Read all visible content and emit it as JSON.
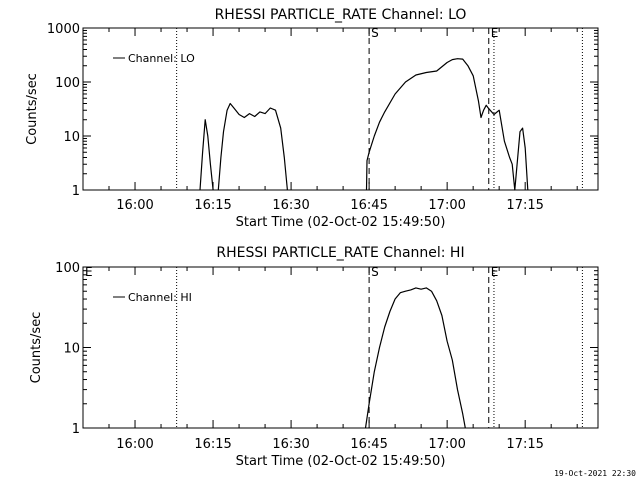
{
  "footer": {
    "timestamp": "19-Oct-2021 22:30"
  },
  "chart_data": [
    {
      "type": "line",
      "title": "RHESSI PARTICLE_RATE Channel: LO",
      "xlabel": "Start Time (02-Oct-02 15:49:50)",
      "ylabel": "Counts/sec",
      "y_scale": "log",
      "ylim": [
        1,
        1000
      ],
      "yticks": [
        1,
        10,
        100,
        1000
      ],
      "ytick_labels": [
        "1",
        "10",
        "100",
        "1000"
      ],
      "xlim": [
        "15:50",
        "17:29"
      ],
      "xticks": [
        "16:00",
        "16:15",
        "16:30",
        "16:45",
        "17:00",
        "17:15"
      ],
      "legend": {
        "label": "Channel: LO",
        "position": "top-left"
      },
      "markers": [
        {
          "time": "16:08",
          "style": "dotted",
          "label": ""
        },
        {
          "time": "16:45",
          "style": "dashed",
          "label": "S"
        },
        {
          "time": "17:08",
          "style": "dashed",
          "label": "E"
        },
        {
          "time": "17:09",
          "style": "dotted",
          "label": ""
        },
        {
          "time": "17:26",
          "style": "dotted",
          "label": ""
        }
      ],
      "series": [
        {
          "segments": [
            [
              [
                "16:12.5",
                1
              ],
              [
                "16:13",
                5
              ],
              [
                "16:13.5",
                20
              ],
              [
                "16:14",
                10
              ],
              [
                "16:14.5",
                3
              ],
              [
                "16:15",
                1
              ]
            ],
            [
              [
                "16:16",
                1
              ],
              [
                "16:16.5",
                4
              ],
              [
                "16:17",
                12
              ],
              [
                "16:17.7",
                30
              ],
              [
                "16:18.3",
                40
              ],
              [
                "16:19",
                33
              ],
              [
                "16:20",
                25
              ],
              [
                "16:21",
                22
              ],
              [
                "16:22",
                26
              ],
              [
                "16:23",
                23
              ],
              [
                "16:24",
                28
              ],
              [
                "16:25",
                26
              ],
              [
                "16:26",
                33
              ],
              [
                "16:27",
                30
              ],
              [
                "16:28",
                14
              ],
              [
                "16:28.7",
                4
              ],
              [
                "16:29.3",
                1
              ]
            ],
            [
              [
                "16:44.5",
                1
              ],
              [
                "16:44.6",
                3.5
              ],
              [
                "16:45",
                5
              ],
              [
                "16:46",
                10
              ],
              [
                "16:47",
                18
              ],
              [
                "16:48",
                28
              ],
              [
                "16:50",
                60
              ],
              [
                "16:52",
                100
              ],
              [
                "16:54",
                135
              ],
              [
                "16:56",
                150
              ],
              [
                "16:58",
                160
              ],
              [
                "17:00",
                230
              ],
              [
                "17:01",
                260
              ],
              [
                "17:02",
                270
              ],
              [
                "17:03",
                265
              ],
              [
                "17:04",
                200
              ],
              [
                "17:05",
                130
              ],
              [
                "17:06",
                45
              ],
              [
                "17:06.5",
                22
              ],
              [
                "17:07",
                30
              ],
              [
                "17:07.5",
                37
              ],
              [
                "17:08",
                32
              ],
              [
                "17:09",
                25
              ],
              [
                "17:10",
                30
              ],
              [
                "17:11",
                8
              ],
              [
                "17:12",
                4
              ],
              [
                "17:12.5",
                3
              ],
              [
                "17:13",
                1
              ],
              [
                "17:14",
                12
              ],
              [
                "17:14.5",
                14
              ],
              [
                "17:15",
                6
              ],
              [
                "17:15.5",
                1
              ]
            ]
          ]
        }
      ]
    },
    {
      "type": "line",
      "title": "RHESSI PARTICLE_RATE Channel: HI",
      "xlabel": "Start Time (02-Oct-02 15:49:50)",
      "ylabel": "Counts/sec",
      "y_scale": "log",
      "ylim": [
        1,
        100
      ],
      "yticks": [
        1,
        10,
        100
      ],
      "ytick_labels": [
        "1",
        "10",
        "100"
      ],
      "xlim": [
        "15:50",
        "17:29"
      ],
      "xticks": [
        "16:00",
        "16:15",
        "16:30",
        "16:45",
        "17:00",
        "17:15"
      ],
      "legend": {
        "label": "Channel: HI",
        "position": "top-left"
      },
      "markers": [
        {
          "time": "15:50",
          "style": "none",
          "label": "E"
        },
        {
          "time": "16:08",
          "style": "dotted",
          "label": ""
        },
        {
          "time": "16:45",
          "style": "dashed",
          "label": "S"
        },
        {
          "time": "17:08",
          "style": "dashed",
          "label": "E"
        },
        {
          "time": "17:09",
          "style": "dotted",
          "label": ""
        },
        {
          "time": "17:26",
          "style": "dotted",
          "label": ""
        }
      ],
      "series": [
        {
          "segments": [
            [
              [
                "16:44.3",
                1
              ],
              [
                "16:45",
                2
              ],
              [
                "16:46",
                5
              ],
              [
                "16:47",
                10
              ],
              [
                "16:48",
                18
              ],
              [
                "16:49",
                28
              ],
              [
                "16:50",
                40
              ],
              [
                "16:51",
                48
              ],
              [
                "16:52",
                50
              ],
              [
                "16:53",
                52
              ],
              [
                "16:54",
                55
              ],
              [
                "16:55",
                53
              ],
              [
                "16:56",
                55
              ],
              [
                "16:57",
                50
              ],
              [
                "16:58",
                38
              ],
              [
                "16:59",
                25
              ],
              [
                "17:00",
                12
              ],
              [
                "17:01",
                7
              ],
              [
                "17:02",
                3
              ],
              [
                "17:03",
                1.5
              ],
              [
                "17:03.5",
                1
              ]
            ]
          ]
        }
      ]
    }
  ]
}
